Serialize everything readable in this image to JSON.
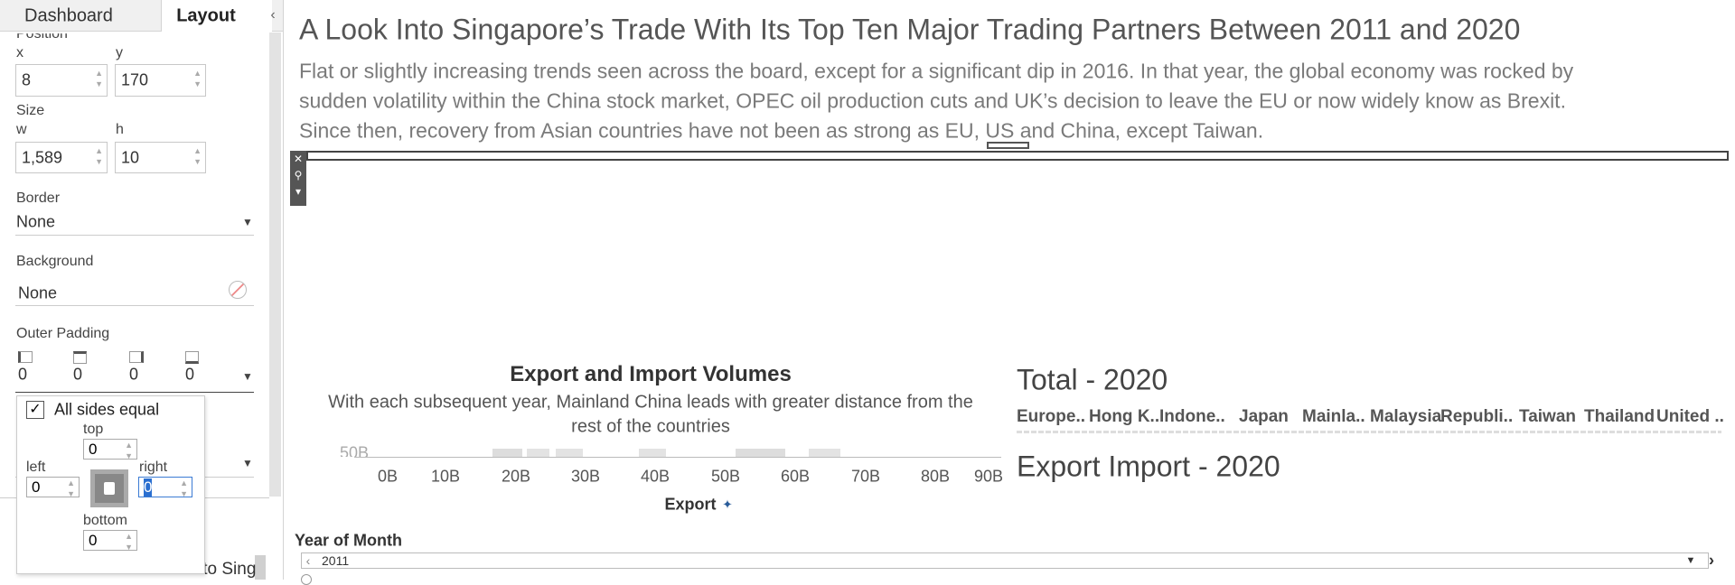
{
  "sidebar": {
    "tabs": [
      "Dashboard",
      "Layout"
    ],
    "position_label": "Position",
    "x_label": "x",
    "x_value": "8",
    "y_label": "y",
    "y_value": "170",
    "size_label": "Size",
    "w_label": "w",
    "w_value": "1,589",
    "h_label": "h",
    "h_value": "10",
    "border_label": "Border",
    "border_value": "None",
    "background_label": "Background",
    "background_value": "None",
    "outer_padding_label": "Outer Padding",
    "padding_values": [
      "0",
      "0",
      "0",
      "0"
    ],
    "popup": {
      "checkbox": "All sides equal",
      "top_label": "top",
      "top_value": "0",
      "left_label": "left",
      "left_value": "0",
      "right_label": "right",
      "right_value": "0",
      "bottom_label": "bottom",
      "bottom_value": "0"
    },
    "item": "A Look Into Sing"
  },
  "dashboard": {
    "title": "A Look Into Singapore’s Trade With Its Top Ten Major Trading Partners Between 2011 and 2020",
    "description": [
      "Flat or slightly increasing trends seen across the board, except for a significant dip in 2016. In that year, the global economy was rocked by",
      "sudden volatility within the China stock market, OPEC oil production cuts and UK’s decision to leave the EU or now widely know as Brexit.",
      "Since then, recovery from Asian countries have not been as strong as EU, US and China, except Taiwan."
    ],
    "chart": {
      "title": "Export and Import Volumes",
      "subtitle": [
        "With each subsequent year, Mainland China leads with greater distance from the",
        "rest of the countries"
      ],
      "y_tick": "50B",
      "x_ticks": [
        "0B",
        "10B",
        "20B",
        "30B",
        "40B",
        "50B",
        "60B",
        "70B",
        "80B",
        "90B"
      ],
      "x_label": "Export"
    },
    "total": {
      "title": "Total - 2020",
      "columns": [
        "Europe..",
        "Hong K..",
        "Indone..",
        "Japan",
        "Mainla..",
        "Malaysia",
        "Republi..",
        "Taiwan",
        "Thailand",
        "United .."
      ]
    },
    "export_import_title": "Export Import - 2020",
    "filter": {
      "label": "Year of Month",
      "value": "2011"
    }
  }
}
